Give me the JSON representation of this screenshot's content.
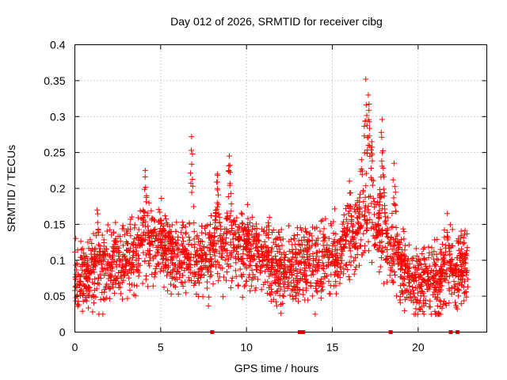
{
  "chart_data": {
    "type": "scatter",
    "title": "Day 012 of 2026, SRMTID for receiver cibg",
    "xlabel": "GPS time / hours",
    "ylabel": "SRMTID / TECUs",
    "xlim": [
      0,
      24
    ],
    "ylim": [
      0,
      0.4
    ],
    "x_ticks": [
      0,
      5,
      10,
      15,
      20
    ],
    "x_tick_labels": [
      "0",
      "5",
      "10",
      "15",
      "20"
    ],
    "y_ticks": [
      0,
      0.05,
      0.1,
      0.15,
      0.2,
      0.25,
      0.3,
      0.35,
      0.4
    ],
    "y_tick_labels": [
      "0",
      "0.05",
      "0.1",
      "0.15",
      "0.2",
      "0.25",
      "0.3",
      "0.35",
      "0.4"
    ],
    "grid": true,
    "marker": "plus",
    "color": "#ff0000",
    "point_count_estimate": 2600,
    "hour_range": [
      0,
      22.9
    ],
    "trend": [
      {
        "hour": 0,
        "median": 0.072
      },
      {
        "hour": 1,
        "median": 0.08
      },
      {
        "hour": 2,
        "median": 0.092
      },
      {
        "hour": 3,
        "median": 0.1
      },
      {
        "hour": 4,
        "median": 0.12
      },
      {
        "hour": 5,
        "median": 0.118
      },
      {
        "hour": 6,
        "median": 0.1
      },
      {
        "hour": 7,
        "median": 0.095
      },
      {
        "hour": 8,
        "median": 0.11
      },
      {
        "hour": 9,
        "median": 0.115
      },
      {
        "hour": 10,
        "median": 0.118
      },
      {
        "hour": 11,
        "median": 0.1
      },
      {
        "hour": 12,
        "median": 0.088
      },
      {
        "hour": 13,
        "median": 0.092
      },
      {
        "hour": 14,
        "median": 0.094
      },
      {
        "hour": 15,
        "median": 0.1
      },
      {
        "hour": 16,
        "median": 0.118
      },
      {
        "hour": 17,
        "median": 0.145
      },
      {
        "hour": 18,
        "median": 0.13
      },
      {
        "hour": 19,
        "median": 0.085
      },
      {
        "hour": 20,
        "median": 0.07
      },
      {
        "hour": 21,
        "median": 0.075
      },
      {
        "hour": 22,
        "median": 0.085
      },
      {
        "hour": 23,
        "median": 0.095
      }
    ],
    "peaks": [
      {
        "hour": 1.3,
        "value": 0.17
      },
      {
        "hour": 4.1,
        "value": 0.225
      },
      {
        "hour": 6.8,
        "value": 0.272
      },
      {
        "hour": 8.3,
        "value": 0.22
      },
      {
        "hour": 9.0,
        "value": 0.245
      },
      {
        "hour": 16.0,
        "value": 0.21
      },
      {
        "hour": 16.7,
        "value": 0.24
      },
      {
        "hour": 16.95,
        "value": 0.352
      },
      {
        "hour": 17.1,
        "value": 0.33
      },
      {
        "hour": 17.3,
        "value": 0.265
      },
      {
        "hour": 17.9,
        "value": 0.296
      },
      {
        "hour": 18.6,
        "value": 0.235
      },
      {
        "hour": 21.7,
        "value": 0.165
      }
    ],
    "zero_values_at_hours": [
      8.0,
      13.1,
      13.3,
      18.4,
      21.9,
      22.3
    ]
  }
}
